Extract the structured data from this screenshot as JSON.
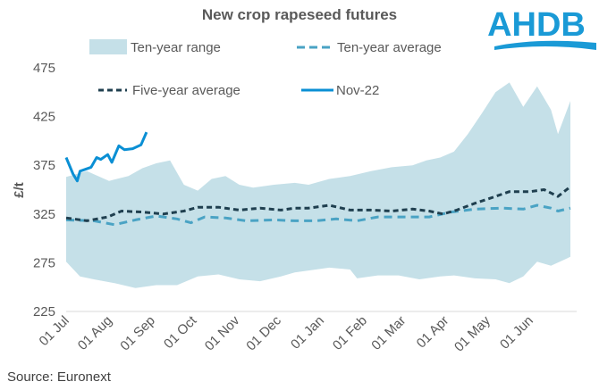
{
  "logo": {
    "text": "AHDB",
    "color": "#1a9ad6"
  },
  "source": "Source: Euronext",
  "chart_data": {
    "type": "line",
    "title": "New crop rapeseed futures",
    "xlabel": "",
    "ylabel": "£/t",
    "ylim": [
      225,
      475
    ],
    "yticks": [
      225,
      275,
      325,
      375,
      425,
      475
    ],
    "x_unit": "days since 01 Jul",
    "xlim": [
      0,
      364
    ],
    "xticks": [
      {
        "day": 0,
        "label": "01 Jul"
      },
      {
        "day": 31,
        "label": "01 Aug"
      },
      {
        "day": 62,
        "label": "01 Sep"
      },
      {
        "day": 92,
        "label": "01 Oct"
      },
      {
        "day": 123,
        "label": "01 Nov"
      },
      {
        "day": 153,
        "label": "01 Dec"
      },
      {
        "day": 184,
        "label": "01 Jan"
      },
      {
        "day": 215,
        "label": "01 Feb"
      },
      {
        "day": 243,
        "label": "01 Mar"
      },
      {
        "day": 274,
        "label": "01 Apr"
      },
      {
        "day": 304,
        "label": "01 May"
      },
      {
        "day": 335,
        "label": "01 Jun"
      }
    ],
    "grid": false,
    "legend_position": "top",
    "range": {
      "name": "Ten-year range",
      "color": "#c5e0e8",
      "upper": [
        [
          0,
          363
        ],
        [
          5,
          365
        ],
        [
          15,
          369
        ],
        [
          31,
          359
        ],
        [
          45,
          364
        ],
        [
          55,
          372
        ],
        [
          65,
          377
        ],
        [
          75,
          380
        ],
        [
          85,
          355
        ],
        [
          95,
          349
        ],
        [
          105,
          361
        ],
        [
          115,
          364
        ],
        [
          125,
          355
        ],
        [
          135,
          352
        ],
        [
          150,
          355
        ],
        [
          165,
          357
        ],
        [
          175,
          355
        ],
        [
          190,
          361
        ],
        [
          205,
          364
        ],
        [
          220,
          369
        ],
        [
          235,
          373
        ],
        [
          250,
          375
        ],
        [
          260,
          380
        ],
        [
          270,
          383
        ],
        [
          280,
          389
        ],
        [
          290,
          407
        ],
        [
          300,
          428
        ],
        [
          310,
          450
        ],
        [
          320,
          460
        ],
        [
          330,
          435
        ],
        [
          340,
          456
        ],
        [
          350,
          432
        ],
        [
          355,
          407
        ],
        [
          364,
          441
        ]
      ],
      "lower": [
        [
          0,
          276
        ],
        [
          10,
          261
        ],
        [
          20,
          258
        ],
        [
          35,
          254
        ],
        [
          50,
          249
        ],
        [
          65,
          252
        ],
        [
          80,
          252
        ],
        [
          95,
          261
        ],
        [
          110,
          263
        ],
        [
          125,
          258
        ],
        [
          140,
          256
        ],
        [
          155,
          261
        ],
        [
          165,
          265
        ],
        [
          175,
          267
        ],
        [
          190,
          270
        ],
        [
          205,
          268
        ],
        [
          210,
          259
        ],
        [
          225,
          262
        ],
        [
          240,
          262
        ],
        [
          255,
          258
        ],
        [
          270,
          261
        ],
        [
          280,
          262
        ],
        [
          295,
          259
        ],
        [
          310,
          258
        ],
        [
          320,
          254
        ],
        [
          330,
          261
        ],
        [
          340,
          276
        ],
        [
          350,
          272
        ],
        [
          364,
          281
        ]
      ]
    },
    "series": [
      {
        "name": "Ten-year average",
        "color": "#4aa3c4",
        "style": "dashed",
        "points": [
          [
            0,
            319
          ],
          [
            20,
            318
          ],
          [
            35,
            314
          ],
          [
            50,
            319
          ],
          [
            65,
            323
          ],
          [
            80,
            320
          ],
          [
            90,
            316
          ],
          [
            100,
            322
          ],
          [
            115,
            321
          ],
          [
            130,
            318
          ],
          [
            150,
            319
          ],
          [
            165,
            318
          ],
          [
            180,
            318
          ],
          [
            195,
            320
          ],
          [
            210,
            318
          ],
          [
            225,
            322
          ],
          [
            245,
            322
          ],
          [
            262,
            322
          ],
          [
            278,
            327
          ],
          [
            295,
            330
          ],
          [
            315,
            331
          ],
          [
            330,
            330
          ],
          [
            340,
            334
          ],
          [
            350,
            331
          ],
          [
            355,
            328
          ],
          [
            364,
            331
          ]
        ]
      },
      {
        "name": "Five-year average",
        "color": "#1f3f4f",
        "style": "dashed",
        "points": [
          [
            0,
            321
          ],
          [
            15,
            318
          ],
          [
            30,
            322
          ],
          [
            40,
            328
          ],
          [
            55,
            327
          ],
          [
            70,
            325
          ],
          [
            85,
            328
          ],
          [
            95,
            332
          ],
          [
            110,
            332
          ],
          [
            125,
            329
          ],
          [
            140,
            331
          ],
          [
            155,
            329
          ],
          [
            165,
            331
          ],
          [
            175,
            331
          ],
          [
            190,
            334
          ],
          [
            205,
            329
          ],
          [
            220,
            329
          ],
          [
            235,
            328
          ],
          [
            250,
            330
          ],
          [
            262,
            328
          ],
          [
            272,
            325
          ],
          [
            282,
            329
          ],
          [
            295,
            336
          ],
          [
            310,
            343
          ],
          [
            320,
            348
          ],
          [
            335,
            348
          ],
          [
            345,
            350
          ],
          [
            355,
            343
          ],
          [
            364,
            353
          ]
        ]
      },
      {
        "name": "Nov-22",
        "color": "#0a8fd4",
        "style": "solid",
        "points": [
          [
            0,
            383
          ],
          [
            5,
            366
          ],
          [
            8,
            359
          ],
          [
            10,
            369
          ],
          [
            18,
            373
          ],
          [
            22,
            383
          ],
          [
            25,
            381
          ],
          [
            30,
            386
          ],
          [
            33,
            378
          ],
          [
            38,
            395
          ],
          [
            42,
            391
          ],
          [
            48,
            392
          ],
          [
            54,
            396
          ],
          [
            58,
            409
          ]
        ]
      }
    ]
  }
}
